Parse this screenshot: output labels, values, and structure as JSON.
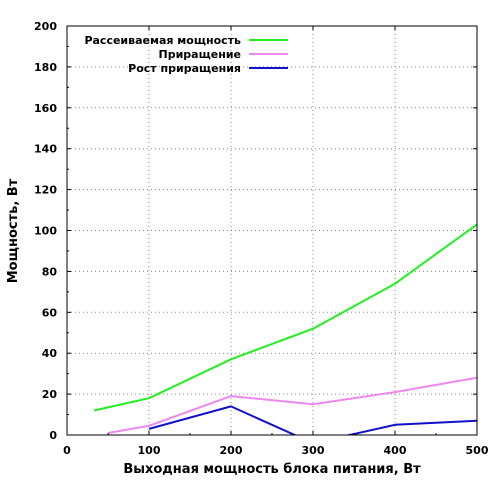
{
  "chart_data": {
    "type": "line",
    "xlabel": "Выходная мощность блока питания, Вт",
    "ylabel": "Мощность, Вт",
    "xlim": [
      0,
      500
    ],
    "ylim": [
      0,
      200
    ],
    "xticks": [
      0,
      100,
      200,
      300,
      400,
      500
    ],
    "yticks": [
      0,
      20,
      40,
      60,
      80,
      100,
      120,
      140,
      160,
      180,
      200
    ],
    "grid": true,
    "legend_position": "top-left",
    "series": [
      {
        "name": "Рассеиваемая мощность",
        "color": "#22ee22",
        "points": [
          [
            33,
            12
          ],
          [
            50,
            13.5
          ],
          [
            100,
            18
          ],
          [
            200,
            37
          ],
          [
            300,
            52
          ],
          [
            400,
            74
          ],
          [
            500,
            103
          ]
        ]
      },
      {
        "name": "Приращение",
        "color": "#ee88ee",
        "points": [
          [
            50,
            1
          ],
          [
            100,
            4.5
          ],
          [
            200,
            19
          ],
          [
            300,
            15
          ],
          [
            400,
            21
          ],
          [
            500,
            28
          ]
        ]
      },
      {
        "name": "Рост приращения",
        "color": "#1111cc",
        "points": [
          [
            100,
            3
          ],
          [
            200,
            14
          ],
          [
            300,
            -4
          ],
          [
            400,
            5
          ],
          [
            500,
            7
          ]
        ]
      }
    ]
  }
}
